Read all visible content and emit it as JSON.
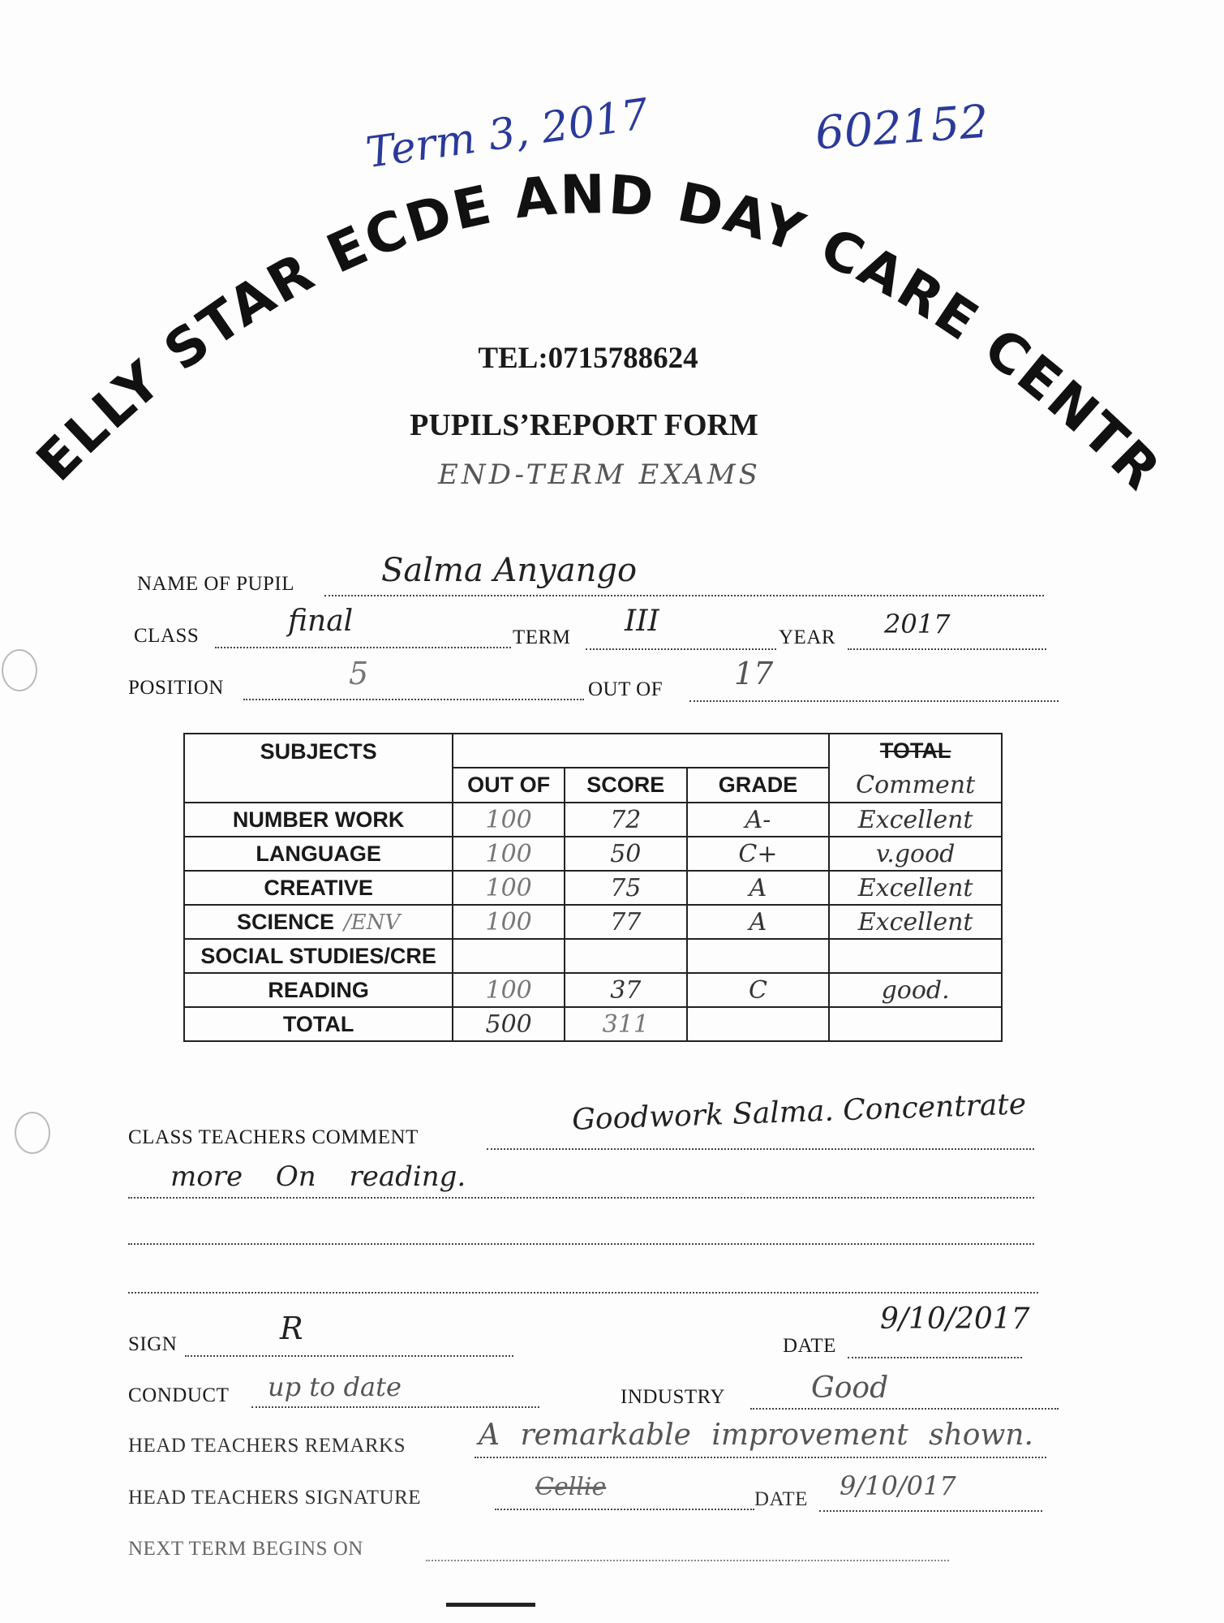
{
  "header": {
    "school_name": "CELLY STAR ECDE AND DAY CARE CENTRE",
    "tel": "TEL:0715788624",
    "form_title": "PUPILS’REPORT FORM",
    "exam_note": "END-TERM EXAMS",
    "annotation_term": "Term 3, 2017",
    "annotation_number": "602152"
  },
  "pupil": {
    "name_label": "NAME OF PUPIL",
    "name": "Salma Anyango",
    "class_label": "CLASS",
    "class": "final",
    "term_label": "TERM",
    "term": "III",
    "year_label": "YEAR",
    "year": "2017",
    "position_label": "POSITION",
    "position": "5",
    "out_of_label": "OUT OF",
    "out_of": "17"
  },
  "table": {
    "headers": {
      "subjects": "SUBJECTS",
      "out_of": "OUT OF",
      "score": "SCORE",
      "grade": "GRADE",
      "total": "TOTAL",
      "comment": "Comment"
    },
    "rows": [
      {
        "subject": "NUMBER WORK",
        "out_of": "100",
        "score": "72",
        "grade": "A-",
        "comment": "Excellent"
      },
      {
        "subject": "LANGUAGE",
        "out_of": "100",
        "score": "50",
        "grade": "C+",
        "comment": "v.good"
      },
      {
        "subject": "CREATIVE",
        "out_of": "100",
        "score": "75",
        "grade": "A",
        "comment": "Excellent"
      },
      {
        "subject": "SCIENCE",
        "subject_note": "/ENV",
        "out_of": "100",
        "score": "77",
        "grade": "A",
        "comment": "Excellent"
      },
      {
        "subject": "SOCIAL STUDIES/CRE",
        "out_of": "",
        "score": "",
        "grade": "",
        "comment": ""
      },
      {
        "subject": "READING",
        "out_of": "100",
        "score": "37",
        "grade": "C",
        "comment": "good."
      }
    ],
    "total": {
      "label": "TOTAL",
      "out_of": "500",
      "score": "311"
    }
  },
  "remarks": {
    "class_teacher_label": "CLASS TEACHERS COMMENT",
    "class_teacher_comment_1": "Goodwork   Salma. Concentrate",
    "class_teacher_comment_2": "more   On   reading.",
    "sign_label": "SIGN",
    "sign": "R",
    "date_label": "DATE",
    "date": "9/10/2017",
    "conduct_label": "CONDUCT",
    "conduct": "up to date",
    "industry_label": "INDUSTRY",
    "industry": "Good",
    "head_remarks_label": "HEAD TEACHERS REMARKS",
    "head_remarks": "A remarkable improvement shown.",
    "head_signature_label": "HEAD TEACHERS SIGNATURE",
    "head_signature": "Cellie",
    "head_date_label": "DATE",
    "head_date": "9/10/017",
    "next_term_label": "NEXT TERM BEGINS ON",
    "next_term": ""
  }
}
